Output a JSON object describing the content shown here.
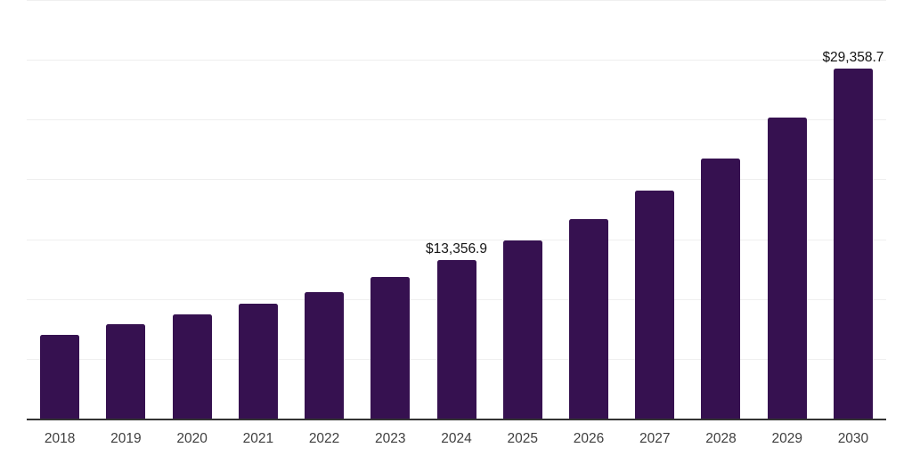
{
  "chart_data": {
    "type": "bar",
    "title": "",
    "xlabel": "",
    "ylabel": "",
    "categories": [
      "2018",
      "2019",
      "2020",
      "2021",
      "2022",
      "2023",
      "2024",
      "2025",
      "2026",
      "2027",
      "2028",
      "2029",
      "2030"
    ],
    "values": [
      7100,
      7970,
      8755,
      9695,
      10680,
      11915,
      13356.9,
      15000,
      16750,
      19115,
      21830,
      25235,
      29358.7
    ],
    "values_note": "only 2024 and 2030 are labeled on screen; other values estimated from bar heights against 5000-unit gridlines",
    "ylim": [
      0,
      35000
    ],
    "grid_step": 5000,
    "grid": "horizontal-only",
    "legend_position": "none",
    "annotations": [
      {
        "index": 6,
        "text": "$13,356.9"
      },
      {
        "index": 12,
        "text": "$29,358.7"
      }
    ],
    "colors": {
      "bar": "#361150",
      "axis_line": "#333333",
      "gridline": "#efefef",
      "tick_label": "#3f3f3f",
      "data_label": "#151515",
      "background": "#ffffff"
    }
  }
}
